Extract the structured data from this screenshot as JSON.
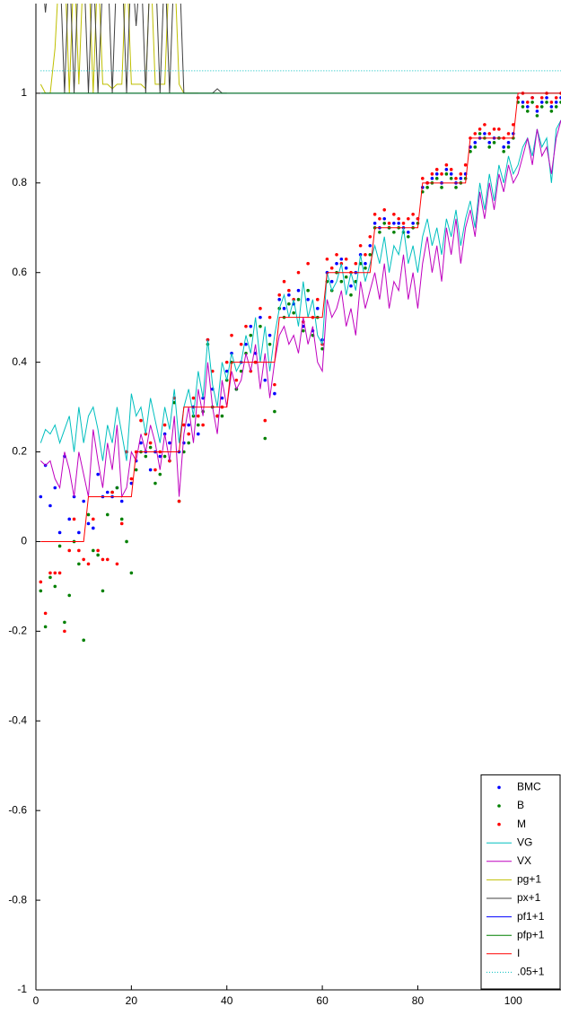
{
  "chart_data": {
    "type": "line",
    "x": [
      1,
      2,
      3,
      4,
      5,
      6,
      7,
      8,
      9,
      10,
      11,
      12,
      13,
      14,
      15,
      16,
      17,
      18,
      19,
      20,
      21,
      22,
      23,
      24,
      25,
      26,
      27,
      28,
      29,
      30,
      31,
      32,
      33,
      34,
      35,
      36,
      37,
      38,
      39,
      40,
      41,
      42,
      43,
      44,
      45,
      46,
      47,
      48,
      49,
      50,
      51,
      52,
      53,
      54,
      55,
      56,
      57,
      58,
      59,
      60,
      61,
      62,
      63,
      64,
      65,
      66,
      67,
      68,
      69,
      70,
      71,
      72,
      73,
      74,
      75,
      76,
      77,
      78,
      79,
      80,
      81,
      82,
      83,
      84,
      85,
      86,
      87,
      88,
      89,
      90,
      91,
      92,
      93,
      94,
      95,
      96,
      97,
      98,
      99,
      100,
      101,
      102,
      103,
      104,
      105,
      106,
      107,
      108,
      109,
      110
    ],
    "xlim": [
      0,
      110
    ],
    "xticks": [
      0,
      20,
      40,
      60,
      80,
      100
    ],
    "ylim": [
      -1,
      1.2
    ],
    "yticks": [
      -1,
      -0.8,
      -0.6,
      -0.4,
      -0.2,
      0,
      0.2,
      0.4,
      0.6,
      0.8,
      1
    ],
    "legend": "lower right",
    "series": [
      {
        "name": "BMC",
        "color": "#0000ff",
        "mode": "markers",
        "values": [
          0.1,
          0.17,
          0.08,
          0.12,
          0.02,
          0.19,
          0.05,
          0.1,
          0.02,
          0.09,
          0.04,
          0.03,
          0.15,
          0.1,
          0.11,
          0.1,
          0.12,
          0.09,
          0.2,
          0.13,
          0.18,
          0.22,
          0.2,
          0.16,
          0.2,
          0.19,
          0.24,
          0.22,
          0.32,
          0.2,
          0.22,
          0.26,
          0.3,
          0.24,
          0.32,
          0.45,
          0.34,
          0.28,
          0.32,
          0.38,
          0.42,
          0.34,
          0.4,
          0.44,
          0.48,
          0.42,
          0.5,
          0.36,
          0.46,
          0.33,
          0.54,
          0.52,
          0.55,
          0.53,
          0.56,
          0.48,
          0.54,
          0.47,
          0.52,
          0.45,
          0.6,
          0.58,
          0.62,
          0.63,
          0.61,
          0.57,
          0.6,
          0.64,
          0.62,
          0.66,
          0.71,
          0.7,
          0.72,
          0.7,
          0.71,
          0.71,
          0.7,
          0.69,
          0.71,
          0.72,
          0.79,
          0.8,
          0.81,
          0.82,
          0.8,
          0.83,
          0.82,
          0.8,
          0.81,
          0.82,
          0.88,
          0.89,
          0.9,
          0.91,
          0.89,
          0.9,
          0.9,
          0.88,
          0.89,
          0.91,
          0.99,
          0.98,
          0.97,
          0.99,
          0.96,
          0.98,
          0.99,
          0.97,
          0.98,
          0.99
        ]
      },
      {
        "name": "B",
        "color": "#008000",
        "mode": "markers",
        "values": [
          -0.11,
          -0.19,
          -0.08,
          -0.1,
          -0.01,
          -0.18,
          -0.12,
          0.0,
          -0.05,
          -0.22,
          0.06,
          -0.02,
          -0.03,
          -0.11,
          0.06,
          0.11,
          0.12,
          0.05,
          0.0,
          -0.07,
          0.16,
          0.2,
          0.19,
          0.21,
          0.13,
          0.15,
          0.19,
          0.18,
          0.31,
          0.09,
          0.2,
          0.22,
          0.28,
          0.26,
          0.29,
          0.44,
          0.3,
          0.28,
          0.28,
          0.36,
          0.4,
          0.34,
          0.38,
          0.42,
          0.46,
          0.4,
          0.48,
          0.23,
          0.44,
          0.29,
          0.52,
          0.5,
          0.53,
          0.51,
          0.54,
          0.47,
          0.56,
          0.46,
          0.5,
          0.43,
          0.58,
          0.56,
          0.6,
          0.58,
          0.59,
          0.55,
          0.58,
          0.62,
          0.61,
          0.64,
          0.7,
          0.69,
          0.71,
          0.7,
          0.69,
          0.7,
          0.69,
          0.68,
          0.7,
          0.71,
          0.78,
          0.79,
          0.8,
          0.81,
          0.79,
          0.82,
          0.81,
          0.79,
          0.8,
          0.81,
          0.87,
          0.88,
          0.91,
          0.9,
          0.88,
          0.89,
          0.9,
          0.87,
          0.88,
          0.9,
          0.98,
          0.97,
          0.96,
          0.98,
          0.95,
          0.97,
          0.98,
          0.96,
          0.97,
          0.98
        ]
      },
      {
        "name": "M",
        "color": "#ff0000",
        "mode": "markers",
        "values": [
          -0.09,
          -0.16,
          -0.07,
          -0.07,
          -0.07,
          -0.2,
          -0.02,
          0.05,
          -0.02,
          -0.04,
          -0.05,
          0.05,
          -0.02,
          -0.04,
          -0.04,
          0.11,
          -0.05,
          0.04,
          0.2,
          0.14,
          0.2,
          0.27,
          0.24,
          0.22,
          0.16,
          0.2,
          0.26,
          0.18,
          0.32,
          0.09,
          0.26,
          0.24,
          0.32,
          0.28,
          0.26,
          0.45,
          0.38,
          0.28,
          0.3,
          0.4,
          0.46,
          0.36,
          0.44,
          0.48,
          0.38,
          0.4,
          0.52,
          0.27,
          0.5,
          0.35,
          0.55,
          0.58,
          0.56,
          0.54,
          0.6,
          0.49,
          0.62,
          0.5,
          0.54,
          0.44,
          0.63,
          0.61,
          0.64,
          0.62,
          0.63,
          0.6,
          0.62,
          0.66,
          0.64,
          0.68,
          0.73,
          0.72,
          0.74,
          0.71,
          0.73,
          0.72,
          0.71,
          0.72,
          0.73,
          0.72,
          0.81,
          0.8,
          0.82,
          0.83,
          0.82,
          0.84,
          0.83,
          0.81,
          0.82,
          0.84,
          0.9,
          0.91,
          0.92,
          0.93,
          0.91,
          0.92,
          0.92,
          0.9,
          0.91,
          0.93,
          0.99,
          1,
          0.98,
          0.99,
          0.97,
          0.99,
          1,
          0.98,
          0.99,
          1
        ]
      },
      {
        "name": "VG",
        "color": "#00bfbf",
        "mode": "lines",
        "values": [
          0.22,
          0.25,
          0.24,
          0.26,
          0.22,
          0.25,
          0.28,
          0.2,
          0.3,
          0.22,
          0.28,
          0.3,
          0.25,
          0.18,
          0.26,
          0.22,
          0.3,
          0.24,
          0.18,
          0.33,
          0.28,
          0.3,
          0.24,
          0.32,
          0.27,
          0.22,
          0.3,
          0.25,
          0.34,
          0.22,
          0.3,
          0.34,
          0.28,
          0.38,
          0.32,
          0.45,
          0.35,
          0.3,
          0.4,
          0.36,
          0.42,
          0.38,
          0.4,
          0.46,
          0.42,
          0.5,
          0.4,
          0.48,
          0.38,
          0.46,
          0.52,
          0.55,
          0.5,
          0.54,
          0.48,
          0.58,
          0.5,
          0.54,
          0.46,
          0.44,
          0.6,
          0.56,
          0.58,
          0.62,
          0.55,
          0.6,
          0.56,
          0.64,
          0.58,
          0.62,
          0.66,
          0.62,
          0.68,
          0.6,
          0.66,
          0.64,
          0.7,
          0.62,
          0.66,
          0.6,
          0.68,
          0.72,
          0.66,
          0.7,
          0.64,
          0.72,
          0.68,
          0.74,
          0.66,
          0.72,
          0.76,
          0.7,
          0.8,
          0.74,
          0.82,
          0.76,
          0.84,
          0.8,
          0.86,
          0.82,
          0.84,
          0.88,
          0.9,
          0.86,
          0.92,
          0.88,
          0.9,
          0.8,
          0.92,
          0.94
        ]
      },
      {
        "name": "VX",
        "color": "#bf00bf",
        "mode": "lines",
        "values": [
          0.18,
          0.17,
          0.18,
          0.14,
          0.12,
          0.2,
          0.16,
          0.1,
          0.2,
          0.15,
          0.1,
          0.25,
          0.18,
          0.12,
          0.22,
          0.16,
          0.26,
          0.1,
          0.12,
          0.2,
          0.18,
          0.24,
          0.2,
          0.26,
          0.22,
          0.16,
          0.24,
          0.18,
          0.28,
          0.1,
          0.24,
          0.3,
          0.22,
          0.34,
          0.28,
          0.4,
          0.3,
          0.24,
          0.36,
          0.3,
          0.38,
          0.34,
          0.36,
          0.42,
          0.38,
          0.44,
          0.34,
          0.42,
          0.32,
          0.4,
          0.46,
          0.48,
          0.44,
          0.46,
          0.42,
          0.5,
          0.44,
          0.48,
          0.4,
          0.38,
          0.54,
          0.5,
          0.52,
          0.56,
          0.48,
          0.52,
          0.46,
          0.58,
          0.52,
          0.56,
          0.6,
          0.54,
          0.62,
          0.52,
          0.58,
          0.56,
          0.64,
          0.54,
          0.6,
          0.52,
          0.62,
          0.68,
          0.6,
          0.66,
          0.58,
          0.7,
          0.64,
          0.72,
          0.62,
          0.7,
          0.74,
          0.68,
          0.78,
          0.72,
          0.8,
          0.74,
          0.82,
          0.78,
          0.84,
          0.8,
          0.82,
          0.86,
          0.9,
          0.84,
          0.92,
          0.86,
          0.88,
          0.82,
          0.9,
          0.94
        ]
      },
      {
        "name": "pg+1",
        "color": "#bfbf00",
        "mode": "lines",
        "x": [
          1,
          2,
          3,
          4,
          5,
          6,
          7,
          8,
          9,
          10,
          11,
          12,
          13,
          14,
          15,
          16,
          17,
          18,
          19,
          20,
          21,
          22,
          23,
          24,
          25,
          26,
          27,
          28,
          29,
          30,
          31,
          32,
          33,
          34
        ],
        "values": [
          1.02,
          1.0,
          1.0,
          1.1,
          1.3,
          1.3,
          1.0,
          1.3,
          1.02,
          1.3,
          1.3,
          1.0,
          1.3,
          1.02,
          1.02,
          1.01,
          1.02,
          1.02,
          1.3,
          1.02,
          1.02,
          1.02,
          1.01,
          1.3,
          1.02,
          1.02,
          1.02,
          1.3,
          1.3,
          1.02,
          1.0,
          1.0,
          1.0,
          1.0
        ]
      },
      {
        "name": "px+1",
        "color": "#404040",
        "mode": "lines",
        "x": [
          1,
          2,
          3,
          4,
          5,
          6,
          7,
          8,
          9,
          10,
          11,
          12,
          13,
          14,
          15,
          16,
          17,
          18,
          19,
          20,
          21,
          22,
          23,
          24,
          25,
          26,
          27,
          28,
          29,
          30,
          31,
          32,
          33,
          34,
          35,
          36,
          37,
          38,
          39,
          40
        ],
        "values": [
          1.3,
          1.18,
          1.3,
          1.25,
          1.3,
          1.0,
          1.3,
          1.0,
          1.3,
          1.3,
          1.0,
          1.3,
          1.0,
          1.25,
          1.3,
          1.0,
          1.3,
          1.3,
          1.0,
          1.3,
          1.15,
          1.3,
          1.0,
          1.3,
          1.3,
          1.0,
          1.3,
          1.0,
          1.3,
          1.3,
          1.0,
          1.0,
          1.0,
          1.0,
          1.0,
          1.0,
          1.0,
          1.01,
          1.0,
          1.0
        ]
      },
      {
        "name": "pf1+1",
        "color": "#0000ff",
        "mode": "lines",
        "x": [
          1,
          110
        ],
        "values": [
          1,
          1
        ]
      },
      {
        "name": "pfp+1",
        "color": "#008000",
        "mode": "lines",
        "x": [
          1,
          110
        ],
        "values": [
          1,
          1
        ]
      },
      {
        "name": "I",
        "color": "#ff0000",
        "mode": "lines",
        "values": [
          0,
          0,
          0,
          0,
          0,
          0,
          0,
          0,
          0,
          0,
          0.1,
          0.1,
          0.1,
          0.1,
          0.1,
          0.1,
          0.1,
          0.1,
          0.1,
          0.1,
          0.2,
          0.2,
          0.2,
          0.2,
          0.2,
          0.2,
          0.2,
          0.2,
          0.2,
          0.2,
          0.3,
          0.3,
          0.3,
          0.3,
          0.3,
          0.3,
          0.3,
          0.3,
          0.3,
          0.3,
          0.4,
          0.4,
          0.4,
          0.4,
          0.4,
          0.4,
          0.4,
          0.4,
          0.4,
          0.4,
          0.5,
          0.5,
          0.5,
          0.5,
          0.5,
          0.5,
          0.5,
          0.5,
          0.5,
          0.5,
          0.6,
          0.6,
          0.6,
          0.6,
          0.6,
          0.6,
          0.6,
          0.6,
          0.6,
          0.6,
          0.7,
          0.7,
          0.7,
          0.7,
          0.7,
          0.7,
          0.7,
          0.7,
          0.7,
          0.7,
          0.8,
          0.8,
          0.8,
          0.8,
          0.8,
          0.8,
          0.8,
          0.8,
          0.8,
          0.8,
          0.9,
          0.9,
          0.9,
          0.9,
          0.9,
          0.9,
          0.9,
          0.9,
          0.9,
          0.9,
          1,
          1,
          1,
          1,
          1,
          1,
          1,
          1,
          1,
          1
        ]
      },
      {
        "name": ".05+1",
        "color": "#00bfbf",
        "mode": "lines",
        "linestyle": "dotted",
        "x": [
          1,
          110
        ],
        "values": [
          1.05,
          1.05
        ]
      }
    ]
  }
}
